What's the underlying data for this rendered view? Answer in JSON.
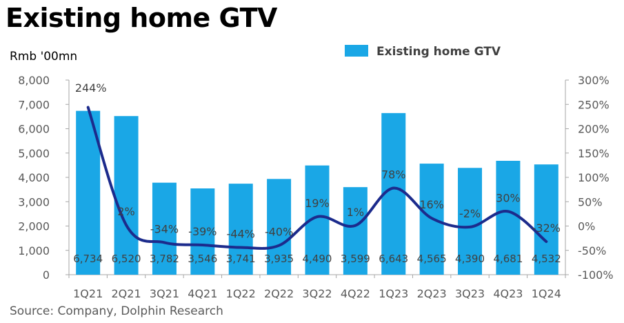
{
  "title": "Existing home GTV",
  "unit_label": "Rmb '00mn",
  "source": "Source: Company, Dolphin Research",
  "colors": {
    "bar": "#1aa7e6",
    "line": "#1c2b8c",
    "axis": "#a6a6a6"
  },
  "chart_data": {
    "type": "bar",
    "categories": [
      "1Q21",
      "2Q21",
      "3Q21",
      "4Q21",
      "1Q22",
      "2Q22",
      "3Q22",
      "4Q22",
      "1Q23",
      "2Q23",
      "3Q23",
      "4Q23",
      "1Q24"
    ],
    "series": [
      {
        "name": "Existing home GTV",
        "type": "bar",
        "axis": "left",
        "values": [
          6734,
          6520,
          3782,
          3546,
          3741,
          3935,
          4490,
          3599,
          6643,
          4565,
          4390,
          4681,
          4532
        ],
        "labels": [
          "6,734",
          "6,520",
          "3,782",
          "3,546",
          "3,741",
          "3,935",
          "4,490",
          "3,599",
          "6,643",
          "4,565",
          "4,390",
          "4,681",
          "4,532"
        ]
      },
      {
        "type": "line",
        "axis": "right",
        "values": [
          244,
          2,
          -34,
          -39,
          -44,
          -40,
          19,
          1,
          78,
          16,
          -2,
          30,
          -32
        ],
        "labels": [
          "244%",
          "2%",
          "-34%",
          "-39%",
          "-44%",
          "-40%",
          "19%",
          "1%",
          "78%",
          "16%",
          "-2%",
          "30%",
          "-32%"
        ]
      }
    ],
    "y_left": {
      "ylim": [
        0,
        8000
      ],
      "ticks": [
        "0",
        "1,000",
        "2,000",
        "3,000",
        "4,000",
        "5,000",
        "6,000",
        "7,000",
        "8,000"
      ]
    },
    "y_right": {
      "ylim": [
        -100,
        300
      ],
      "ticks": [
        "-100%",
        "-50%",
        "0%",
        "50%",
        "100%",
        "150%",
        "200%",
        "250%",
        "300%"
      ]
    },
    "legend": {
      "position": "top-right"
    },
    "grid": false
  }
}
